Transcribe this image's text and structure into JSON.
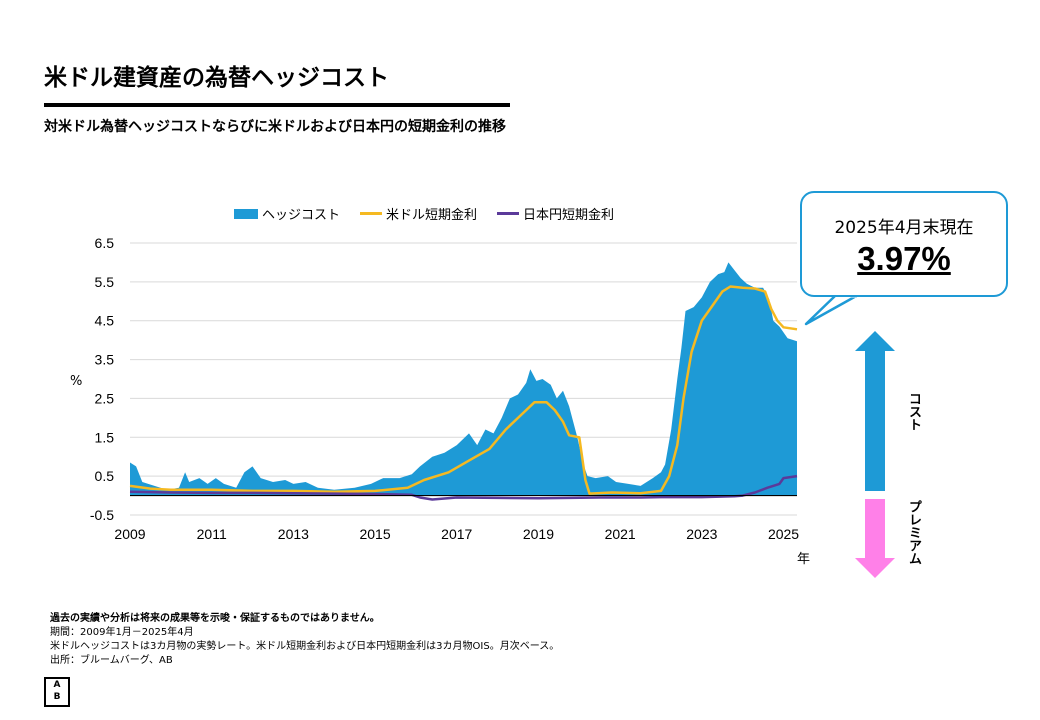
{
  "title": "米ドル建資産の為替ヘッジコスト",
  "subtitle": "対米ドル為替ヘッジコストならびに米ドルおよび日本円の短期金利の推移",
  "callout": {
    "line1": "2025年4月末現在",
    "value": "3.97%"
  },
  "side_labels": {
    "cost": "コスト",
    "premium": "プレミアム"
  },
  "footer": {
    "disclaimer": "過去の実績や分析は将来の成果等を示唆・保証するものではありません。",
    "period": "期間：2009年1月－2025年4月",
    "note": "米ドルヘッジコストは3カ月物の実勢レート。米ドル短期金利および日本円短期金利は3カ月物OIS。月次ベース。",
    "source": "出所：ブルームバーグ、AB"
  },
  "logo": {
    "top": "A",
    "bottom": "B"
  },
  "colors": {
    "hedge": "#1e9ad6",
    "usd": "#f5b921",
    "jpy": "#5b3a9a",
    "cost_arrow": "#1e9ad6",
    "premium_arrow": "#ff80e8"
  },
  "chart_data": {
    "type": "area+line",
    "ylabel": "%",
    "xlabel": "年",
    "ylim": [
      -0.5,
      6.5
    ],
    "xlim": [
      2009,
      2025.33
    ],
    "yticks": [
      "6.5",
      "5.5",
      "4.5",
      "3.5",
      "2.5",
      "1.5",
      "0.5",
      "-0.5"
    ],
    "xticks": [
      "2009",
      "2011",
      "2013",
      "2015",
      "2017",
      "2019",
      "2021",
      "2023",
      "2025"
    ],
    "legend": [
      "ヘッジコスト",
      "米ドル短期金利",
      "日本円短期金利"
    ],
    "series": [
      {
        "name": "ヘッジコスト",
        "type": "area",
        "points": [
          [
            2009.0,
            0.85
          ],
          [
            2009.15,
            0.75
          ],
          [
            2009.3,
            0.35
          ],
          [
            2009.6,
            0.25
          ],
          [
            2009.9,
            0.15
          ],
          [
            2010.2,
            0.2
          ],
          [
            2010.35,
            0.6
          ],
          [
            2010.45,
            0.35
          ],
          [
            2010.7,
            0.45
          ],
          [
            2010.9,
            0.3
          ],
          [
            2011.1,
            0.45
          ],
          [
            2011.3,
            0.3
          ],
          [
            2011.6,
            0.2
          ],
          [
            2011.8,
            0.6
          ],
          [
            2012.0,
            0.75
          ],
          [
            2012.2,
            0.45
          ],
          [
            2012.5,
            0.35
          ],
          [
            2012.8,
            0.4
          ],
          [
            2013.0,
            0.3
          ],
          [
            2013.3,
            0.35
          ],
          [
            2013.6,
            0.2
          ],
          [
            2014.0,
            0.15
          ],
          [
            2014.5,
            0.2
          ],
          [
            2014.9,
            0.3
          ],
          [
            2015.2,
            0.45
          ],
          [
            2015.6,
            0.45
          ],
          [
            2015.9,
            0.55
          ],
          [
            2016.1,
            0.75
          ],
          [
            2016.4,
            1.0
          ],
          [
            2016.7,
            1.1
          ],
          [
            2017.0,
            1.3
          ],
          [
            2017.3,
            1.6
          ],
          [
            2017.5,
            1.3
          ],
          [
            2017.7,
            1.7
          ],
          [
            2017.9,
            1.6
          ],
          [
            2018.1,
            2.0
          ],
          [
            2018.3,
            2.5
          ],
          [
            2018.5,
            2.6
          ],
          [
            2018.7,
            2.9
          ],
          [
            2018.8,
            3.25
          ],
          [
            2018.95,
            2.95
          ],
          [
            2019.1,
            3.0
          ],
          [
            2019.3,
            2.85
          ],
          [
            2019.45,
            2.5
          ],
          [
            2019.6,
            2.7
          ],
          [
            2019.75,
            2.3
          ],
          [
            2019.95,
            1.5
          ],
          [
            2020.1,
            0.8
          ],
          [
            2020.2,
            0.5
          ],
          [
            2020.4,
            0.45
          ],
          [
            2020.7,
            0.5
          ],
          [
            2020.9,
            0.35
          ],
          [
            2021.2,
            0.3
          ],
          [
            2021.5,
            0.25
          ],
          [
            2021.8,
            0.45
          ],
          [
            2022.0,
            0.6
          ],
          [
            2022.1,
            0.8
          ],
          [
            2022.25,
            1.7
          ],
          [
            2022.4,
            3.0
          ],
          [
            2022.5,
            3.8
          ],
          [
            2022.6,
            4.75
          ],
          [
            2022.8,
            4.85
          ],
          [
            2023.0,
            5.1
          ],
          [
            2023.2,
            5.5
          ],
          [
            2023.4,
            5.7
          ],
          [
            2023.55,
            5.75
          ],
          [
            2023.65,
            6.0
          ],
          [
            2023.8,
            5.8
          ],
          [
            2023.95,
            5.6
          ],
          [
            2024.1,
            5.45
          ],
          [
            2024.3,
            5.35
          ],
          [
            2024.5,
            5.35
          ],
          [
            2024.65,
            5.05
          ],
          [
            2024.75,
            4.5
          ],
          [
            2024.9,
            4.35
          ],
          [
            2025.1,
            4.05
          ],
          [
            2025.33,
            3.97
          ]
        ]
      },
      {
        "name": "米ドル短期金利",
        "type": "line",
        "points": [
          [
            2009.0,
            0.25
          ],
          [
            2009.5,
            0.18
          ],
          [
            2010.0,
            0.15
          ],
          [
            2011.0,
            0.15
          ],
          [
            2012.0,
            0.12
          ],
          [
            2013.0,
            0.12
          ],
          [
            2014.0,
            0.1
          ],
          [
            2015.0,
            0.12
          ],
          [
            2015.8,
            0.2
          ],
          [
            2016.2,
            0.4
          ],
          [
            2016.8,
            0.6
          ],
          [
            2017.3,
            0.9
          ],
          [
            2017.8,
            1.2
          ],
          [
            2018.2,
            1.7
          ],
          [
            2018.6,
            2.1
          ],
          [
            2018.9,
            2.4
          ],
          [
            2019.2,
            2.4
          ],
          [
            2019.4,
            2.2
          ],
          [
            2019.6,
            1.9
          ],
          [
            2019.75,
            1.55
          ],
          [
            2020.0,
            1.5
          ],
          [
            2020.15,
            0.4
          ],
          [
            2020.25,
            0.05
          ],
          [
            2020.8,
            0.08
          ],
          [
            2021.5,
            0.06
          ],
          [
            2022.0,
            0.12
          ],
          [
            2022.2,
            0.5
          ],
          [
            2022.4,
            1.3
          ],
          [
            2022.55,
            2.5
          ],
          [
            2022.75,
            3.7
          ],
          [
            2023.0,
            4.5
          ],
          [
            2023.2,
            4.8
          ],
          [
            2023.5,
            5.25
          ],
          [
            2023.7,
            5.38
          ],
          [
            2024.0,
            5.35
          ],
          [
            2024.3,
            5.33
          ],
          [
            2024.55,
            5.25
          ],
          [
            2024.7,
            4.8
          ],
          [
            2024.85,
            4.5
          ],
          [
            2025.0,
            4.33
          ],
          [
            2025.33,
            4.28
          ]
        ]
      },
      {
        "name": "日本円短期金利",
        "type": "line",
        "points": [
          [
            2009.0,
            0.1
          ],
          [
            2010.0,
            0.08
          ],
          [
            2011.0,
            0.07
          ],
          [
            2012.0,
            0.07
          ],
          [
            2013.0,
            0.06
          ],
          [
            2014.0,
            0.05
          ],
          [
            2015.0,
            0.04
          ],
          [
            2015.9,
            0.02
          ],
          [
            2016.1,
            -0.05
          ],
          [
            2016.4,
            -0.1
          ],
          [
            2017.0,
            -0.05
          ],
          [
            2018.0,
            -0.06
          ],
          [
            2019.0,
            -0.07
          ],
          [
            2019.8,
            -0.06
          ],
          [
            2020.5,
            -0.05
          ],
          [
            2021.5,
            -0.05
          ],
          [
            2022.0,
            -0.04
          ],
          [
            2023.0,
            -0.04
          ],
          [
            2023.8,
            -0.02
          ],
          [
            2024.0,
            0.0
          ],
          [
            2024.3,
            0.08
          ],
          [
            2024.6,
            0.2
          ],
          [
            2024.9,
            0.3
          ],
          [
            2025.0,
            0.45
          ],
          [
            2025.33,
            0.5
          ]
        ]
      }
    ]
  }
}
